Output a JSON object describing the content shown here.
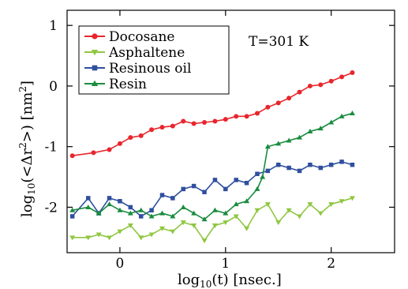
{
  "chart_data": {
    "type": "line",
    "xlabel": {
      "base": "log",
      "sub": "10",
      "rest": "(t)  [nsec.]"
    },
    "ylabel": {
      "base": "log",
      "sub": "10",
      "mid": "(<Δr",
      "sup1": "2",
      "mid2": ">)  [nm",
      "sup2": "2",
      "end": "]"
    },
    "annotation": "T=301 K",
    "xlim": [
      -0.5,
      2.6
    ],
    "ylim": [
      -2.75,
      1.25
    ],
    "xticks": [
      0,
      1,
      2
    ],
    "xtick_labels": [
      "0",
      "1",
      "2"
    ],
    "yticks": [
      1,
      0,
      -1,
      -2
    ],
    "ytick_labels": [
      "1",
      "0",
      "-1",
      "-2"
    ],
    "grid": false,
    "legend_position": "top-left",
    "colors": {
      "Docosane": "#e8262c",
      "Asphaltene": "#8fc741",
      "Resinous oil": "#2f4f9f",
      "Resin": "#1a8c3e"
    },
    "series": [
      {
        "name": "Docosane",
        "marker": "circle",
        "x": [
          -0.45,
          -0.25,
          -0.1,
          0.0,
          0.1,
          0.2,
          0.3,
          0.4,
          0.5,
          0.6,
          0.7,
          0.8,
          0.9,
          1.0,
          1.1,
          1.2,
          1.3,
          1.4,
          1.5,
          1.6,
          1.7,
          1.8,
          1.9,
          2.0,
          2.1,
          2.2
        ],
        "y": [
          -1.15,
          -1.1,
          -1.05,
          -0.95,
          -0.85,
          -0.82,
          -0.72,
          -0.68,
          -0.66,
          -0.58,
          -0.62,
          -0.6,
          -0.58,
          -0.55,
          -0.5,
          -0.5,
          -0.45,
          -0.35,
          -0.28,
          -0.2,
          -0.1,
          0.0,
          0.02,
          0.08,
          0.15,
          0.22
        ]
      },
      {
        "name": "Asphaltene",
        "marker": "triangle-down",
        "x": [
          -0.45,
          -0.3,
          -0.2,
          -0.1,
          0.0,
          0.1,
          0.2,
          0.3,
          0.4,
          0.5,
          0.6,
          0.7,
          0.8,
          0.9,
          1.0,
          1.1,
          1.2,
          1.3,
          1.4,
          1.5,
          1.6,
          1.7,
          1.8,
          1.9,
          2.0,
          2.1,
          2.2
        ],
        "y": [
          -2.5,
          -2.5,
          -2.45,
          -2.5,
          -2.4,
          -2.3,
          -2.5,
          -2.45,
          -2.35,
          -2.4,
          -2.25,
          -2.3,
          -2.55,
          -2.3,
          -2.25,
          -2.15,
          -2.35,
          -2.05,
          -1.95,
          -2.25,
          -2.05,
          -2.15,
          -1.95,
          -2.1,
          -1.95,
          -1.9,
          -1.85
        ]
      },
      {
        "name": "Resinous oil",
        "marker": "square",
        "x": [
          -0.45,
          -0.3,
          -0.2,
          -0.1,
          0.0,
          0.1,
          0.2,
          0.3,
          0.4,
          0.5,
          0.6,
          0.7,
          0.8,
          0.9,
          1.0,
          1.1,
          1.2,
          1.3,
          1.4,
          1.5,
          1.6,
          1.7,
          1.8,
          1.9,
          2.0,
          2.1,
          2.2
        ],
        "y": [
          -2.15,
          -1.85,
          -2.1,
          -1.85,
          -1.9,
          -2.0,
          -2.15,
          -2.05,
          -1.8,
          -1.85,
          -1.7,
          -1.65,
          -1.75,
          -1.55,
          -1.7,
          -1.55,
          -1.6,
          -1.45,
          -1.4,
          -1.3,
          -1.35,
          -1.4,
          -1.3,
          -1.35,
          -1.3,
          -1.25,
          -1.3
        ]
      },
      {
        "name": "Resin",
        "marker": "triangle-up",
        "x": [
          -0.45,
          -0.3,
          -0.2,
          -0.1,
          0.0,
          0.1,
          0.2,
          0.3,
          0.4,
          0.5,
          0.6,
          0.7,
          0.8,
          0.9,
          1.0,
          1.1,
          1.2,
          1.3,
          1.35,
          1.4,
          1.5,
          1.6,
          1.7,
          1.8,
          1.9,
          2.0,
          2.1,
          2.2
        ],
        "y": [
          -2.05,
          -2.0,
          -2.1,
          -1.95,
          -2.05,
          -2.1,
          -2.05,
          -2.15,
          -2.1,
          -2.15,
          -2.0,
          -2.1,
          -2.2,
          -2.05,
          -2.1,
          -1.95,
          -1.9,
          -1.7,
          -1.5,
          -1.0,
          -0.95,
          -0.9,
          -0.85,
          -0.75,
          -0.7,
          -0.6,
          -0.5,
          -0.45
        ]
      }
    ]
  }
}
